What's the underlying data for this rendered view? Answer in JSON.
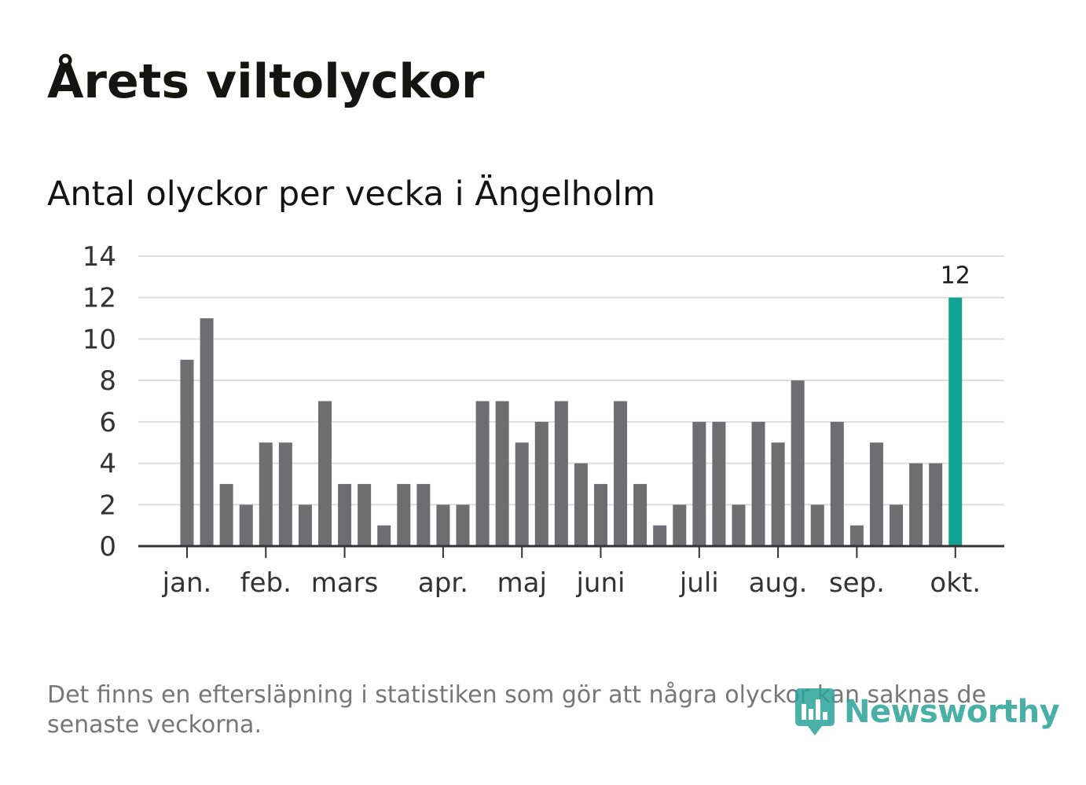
{
  "header": {
    "title": "Årets viltolyckor",
    "subtitle": "Antal olyckor per vecka i Ängelholm"
  },
  "footer": {
    "note": "Det finns en eftersläpning i statistiken som gör att några olyckor kan saknas de senaste veckorna.",
    "logo_text": "Newsworthy"
  },
  "colors": {
    "bar": "#6e6d72",
    "highlight": "#12a394",
    "grid": "#dddddd",
    "axis": "#333333"
  },
  "chart_data": {
    "type": "bar",
    "title": "Antal olyckor per vecka i Ängelholm",
    "xlabel": "",
    "ylabel": "",
    "ylim": [
      0,
      14
    ],
    "yticks": [
      0,
      2,
      4,
      6,
      8,
      10,
      12,
      14
    ],
    "values": [
      9,
      11,
      3,
      2,
      5,
      5,
      2,
      7,
      3,
      3,
      1,
      3,
      3,
      2,
      2,
      7,
      7,
      5,
      6,
      7,
      4,
      3,
      7,
      3,
      1,
      2,
      6,
      6,
      2,
      6,
      5,
      8,
      2,
      6,
      1,
      5,
      2,
      4,
      4,
      12
    ],
    "month_labels": [
      {
        "label": "jan.",
        "week_index": 0
      },
      {
        "label": "feb.",
        "week_index": 4
      },
      {
        "label": "mars",
        "week_index": 8
      },
      {
        "label": "apr.",
        "week_index": 13
      },
      {
        "label": "maj",
        "week_index": 17
      },
      {
        "label": "juni",
        "week_index": 21
      },
      {
        "label": "juli",
        "week_index": 26
      },
      {
        "label": "aug.",
        "week_index": 30
      },
      {
        "label": "sep.",
        "week_index": 34
      },
      {
        "label": "okt.",
        "week_index": 39
      }
    ],
    "highlight_index": 39,
    "highlight_label": "12"
  }
}
